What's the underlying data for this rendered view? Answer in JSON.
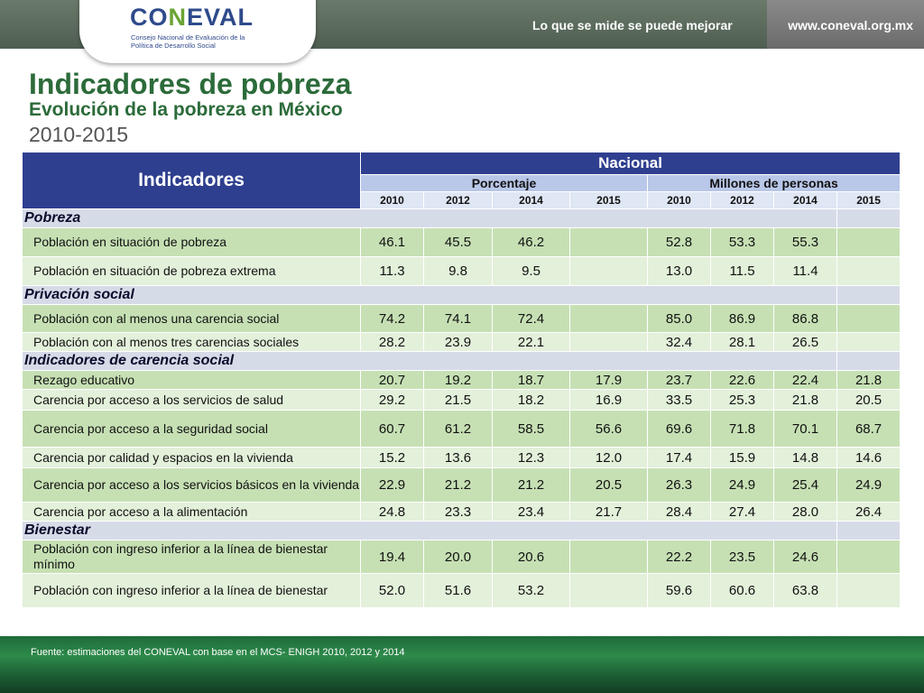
{
  "header": {
    "logo": "CONEVAL",
    "logo_subtitle": "Consejo Nacional de Evaluación de la Política de Desarrollo Social",
    "slogan": "Lo que se mide se puede mejorar",
    "website": "www.coneval.org.mx"
  },
  "title": "Indicadores de pobreza",
  "subtitle": "Evolución de la pobreza en México",
  "period": "2010-2015",
  "table": {
    "indicators_header": "Indicadores",
    "national_header": "Nacional",
    "group_percent": "Porcentaje",
    "group_millions": "Millones de personas",
    "years": [
      "2010",
      "2012",
      "2014",
      "2015",
      "2010",
      "2012",
      "2014",
      "2015"
    ],
    "sections": [
      {
        "name": "Pobreza",
        "rows": [
          {
            "label": "Población en situación de pobreza",
            "values": [
              "46.1",
              "45.5",
              "46.2",
              "",
              "52.8",
              "53.3",
              "55.3",
              ""
            ]
          },
          {
            "label": "Población en situación de pobreza extrema",
            "values": [
              "11.3",
              "9.8",
              "9.5",
              "",
              "13.0",
              "11.5",
              "11.4",
              ""
            ]
          }
        ]
      },
      {
        "name": "Privación social",
        "rows": [
          {
            "label": "Población con al menos una carencia social",
            "values": [
              "74.2",
              "74.1",
              "72.4",
              "",
              "85.0",
              "86.9",
              "86.8",
              ""
            ]
          },
          {
            "label": "Población con al menos tres carencias sociales",
            "values": [
              "28.2",
              "23.9",
              "22.1",
              "",
              "32.4",
              "28.1",
              "26.5",
              ""
            ]
          }
        ]
      },
      {
        "name": "Indicadores de carencia social",
        "rows": [
          {
            "label": "Rezago educativo",
            "values": [
              "20.7",
              "19.2",
              "18.7",
              "17.9",
              "23.7",
              "22.6",
              "22.4",
              "21.8"
            ]
          },
          {
            "label": "Carencia por acceso a los servicios de salud",
            "values": [
              "29.2",
              "21.5",
              "18.2",
              "16.9",
              "33.5",
              "25.3",
              "21.8",
              "20.5"
            ]
          },
          {
            "label": "Carencia por acceso a la seguridad social",
            "values": [
              "60.7",
              "61.2",
              "58.5",
              "56.6",
              "69.6",
              "71.8",
              "70.1",
              "68.7"
            ]
          },
          {
            "label": "Carencia por calidad y espacios en la vivienda",
            "values": [
              "15.2",
              "13.6",
              "12.3",
              "12.0",
              "17.4",
              "15.9",
              "14.8",
              "14.6"
            ]
          },
          {
            "label": "Carencia por acceso a los servicios básicos en la vivienda",
            "values": [
              "22.9",
              "21.2",
              "21.2",
              "20.5",
              "26.3",
              "24.9",
              "25.4",
              "24.9"
            ]
          },
          {
            "label": "Carencia por acceso a la alimentación",
            "values": [
              "24.8",
              "23.3",
              "23.4",
              "21.7",
              "28.4",
              "27.4",
              "28.0",
              "26.4"
            ]
          }
        ]
      },
      {
        "name": "Bienestar",
        "rows": [
          {
            "label": "Población con ingreso inferior a la línea de bienestar mínimo",
            "values": [
              "19.4",
              "20.0",
              "20.6",
              "",
              "22.2",
              "23.5",
              "24.6",
              ""
            ]
          },
          {
            "label": "Población con ingreso inferior a la línea de bienestar",
            "values": [
              "52.0",
              "51.6",
              "53.2",
              "",
              "59.6",
              "60.6",
              "63.8",
              ""
            ]
          }
        ]
      }
    ]
  },
  "footer": "Fuente: estimaciones del CONEVAL con base en el MCS- ENIGH 2010, 2012 y 2014",
  "colors": {
    "header_bg": "#4f5e51",
    "title_green": "#2c6b3a",
    "table_header_blue": "#2f3f8f",
    "row_green_dark": "#c6e0b4",
    "row_green_light": "#e3f0da",
    "section_bg": "#d6dbe8"
  }
}
